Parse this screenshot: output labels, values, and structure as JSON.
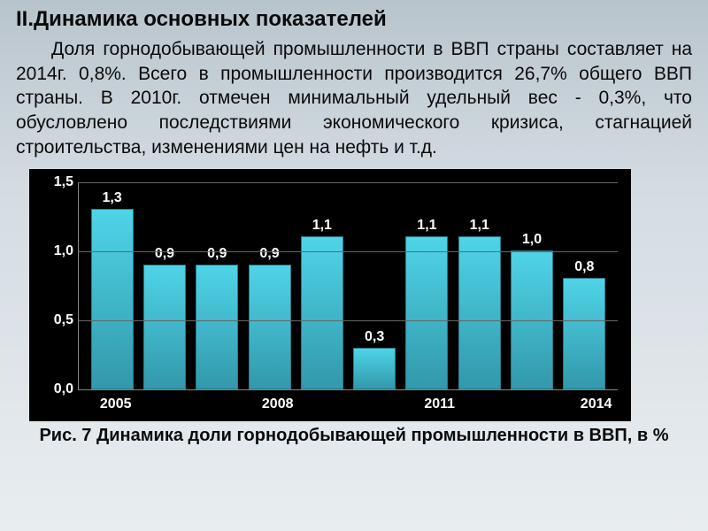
{
  "title": "II.Динамика основных показателей",
  "paragraph": "Доля горнодобывающей промышленности в ВВП страны составляет на 2014г. 0,8%. Всего в промышленности производится 26,7% общего ВВП страны. В 2010г. отмечен минимальный удельный вес - 0,3%, что обусловлено последствиями экономического кризиса, стагнацией строительства, изменениями цен на нефть и т.д.",
  "caption": "Рис. 7 Динамика доли горнодобывающей промышленности в ВВП, в %",
  "chart": {
    "type": "bar",
    "background_color": "#000000",
    "bar_gradient_top": "#4fd4e8",
    "bar_gradient_bottom": "#3398ab",
    "grid_color": "#666666",
    "axis_color": "#888888",
    "text_color": "#ffffff",
    "label_fontsize": 16,
    "label_fontweight": "bold",
    "ylim": [
      0,
      1.5
    ],
    "ytick_step": 0.5,
    "y_ticks": [
      "0,0",
      "0,5",
      "1,0",
      "1,5"
    ],
    "bars": [
      {
        "value": 1.3,
        "label": "1,3"
      },
      {
        "value": 0.9,
        "label": "0,9"
      },
      {
        "value": 0.9,
        "label": "0,9"
      },
      {
        "value": 0.9,
        "label": "0,9"
      },
      {
        "value": 1.1,
        "label": "1,1"
      },
      {
        "value": 0.3,
        "label": "0,3"
      },
      {
        "value": 1.1,
        "label": "1,1"
      },
      {
        "value": 1.1,
        "label": "1,1"
      },
      {
        "value": 1.0,
        "label": "1,0"
      },
      {
        "value": 0.8,
        "label": "0,8"
      }
    ],
    "x_labels": [
      {
        "text": "2005",
        "pos_pct": 7
      },
      {
        "text": "2008",
        "pos_pct": 37
      },
      {
        "text": "2011",
        "pos_pct": 67
      },
      {
        "text": "2014",
        "pos_pct": 96
      }
    ]
  }
}
